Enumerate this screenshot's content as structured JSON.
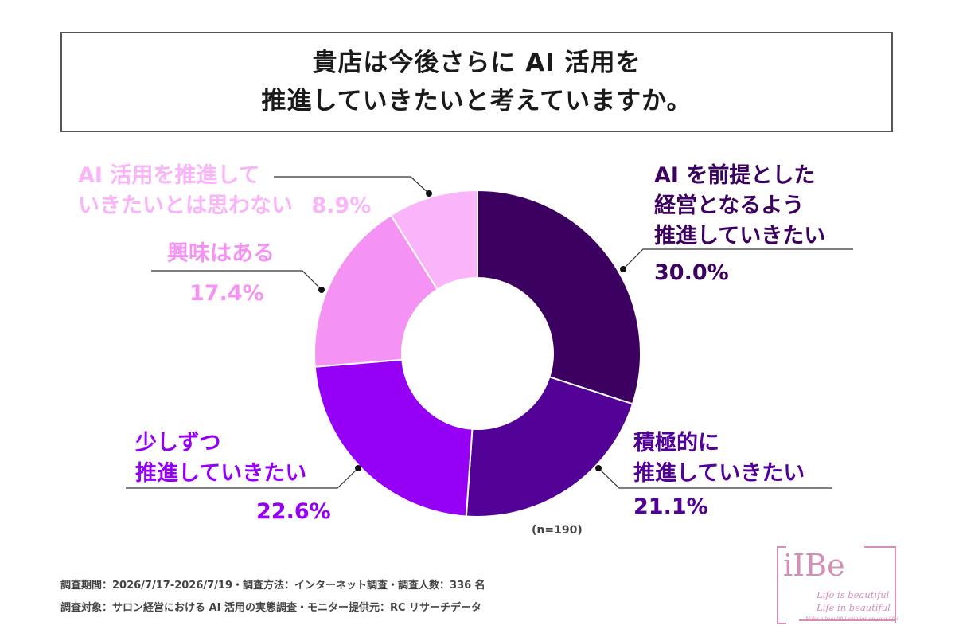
{
  "title": {
    "line1": "貴店は今後さらに AI 活用を",
    "line2": "推進していきたいと考えていますか。"
  },
  "colors": {
    "s1": "#3b0060",
    "s2": "#530097",
    "s3": "#9500f5",
    "s4": "#f593f5",
    "s5": "#fab5fa",
    "leader": "#333333"
  },
  "chart_data": {
    "type": "pie",
    "donut": true,
    "n_label": "(n=190)",
    "slices": [
      {
        "label_lines": [
          "AI を前提とした",
          "経営となるよう",
          "推進していきたい"
        ],
        "value": 30.0,
        "pct_text": "30.0%"
      },
      {
        "label_lines": [
          "積極的に",
          "推進していきたい"
        ],
        "value": 21.1,
        "pct_text": "21.1%"
      },
      {
        "label_lines": [
          "少しずつ",
          "推進していきたい"
        ],
        "value": 22.6,
        "pct_text": "22.6%"
      },
      {
        "label_lines": [
          "興味はある"
        ],
        "value": 17.4,
        "pct_text": "17.4%"
      },
      {
        "label_lines": [
          "AI 活用を推進して",
          "いきたいとは思わない"
        ],
        "value": 8.9,
        "pct_text": "8.9%"
      }
    ]
  },
  "footer": {
    "line1": "調査期間：2026/7/17-2026/7/19・調査方法：インターネット調査・調査人数：336 名",
    "line2": "調査対象：サロン経営における AI 活用の実態調査・モニター提供元：RC リサーチデータ"
  },
  "logo": {
    "main": "iIBe",
    "sub1": "Life is beautiful",
    "sub2": "Life in beautiful",
    "tiny": "Make a beautiful emotion on your life!"
  }
}
